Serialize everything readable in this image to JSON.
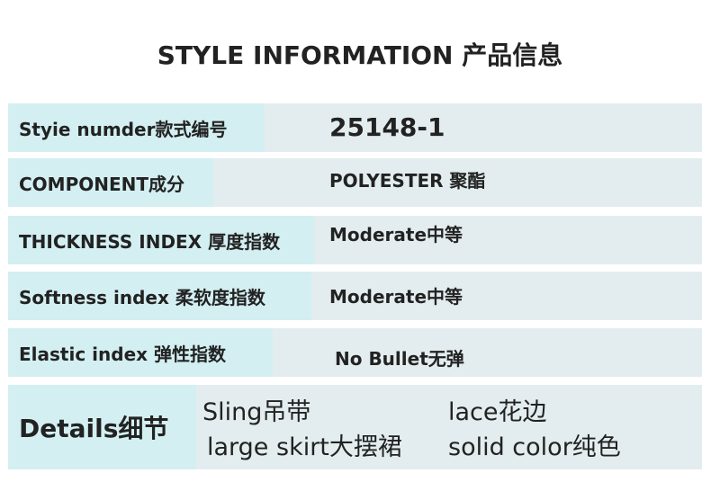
{
  "title": "STYLE INFORMATION 产品信息",
  "rows": [
    {
      "label": "Styie numder款式编号",
      "value": "25148-1"
    },
    {
      "label": "COMPONENT成分",
      "value": "POLYESTER 聚酯"
    },
    {
      "label": "THICKNESS INDEX 厚度指数",
      "value": "Moderate中等"
    },
    {
      "label": "Softness index 柔软度指数",
      "value": "Moderate中等"
    },
    {
      "label": "Elastic index 弹性指数",
      "value": "No Bullet无弹"
    }
  ],
  "details": {
    "label": "Details细节",
    "items": [
      "Sling吊带",
      "lace花边",
      "large skirt大摆裙",
      "solid color纯色"
    ]
  },
  "colors": {
    "label_bg": "#d3eff2",
    "value_bg": "#e3edef"
  }
}
